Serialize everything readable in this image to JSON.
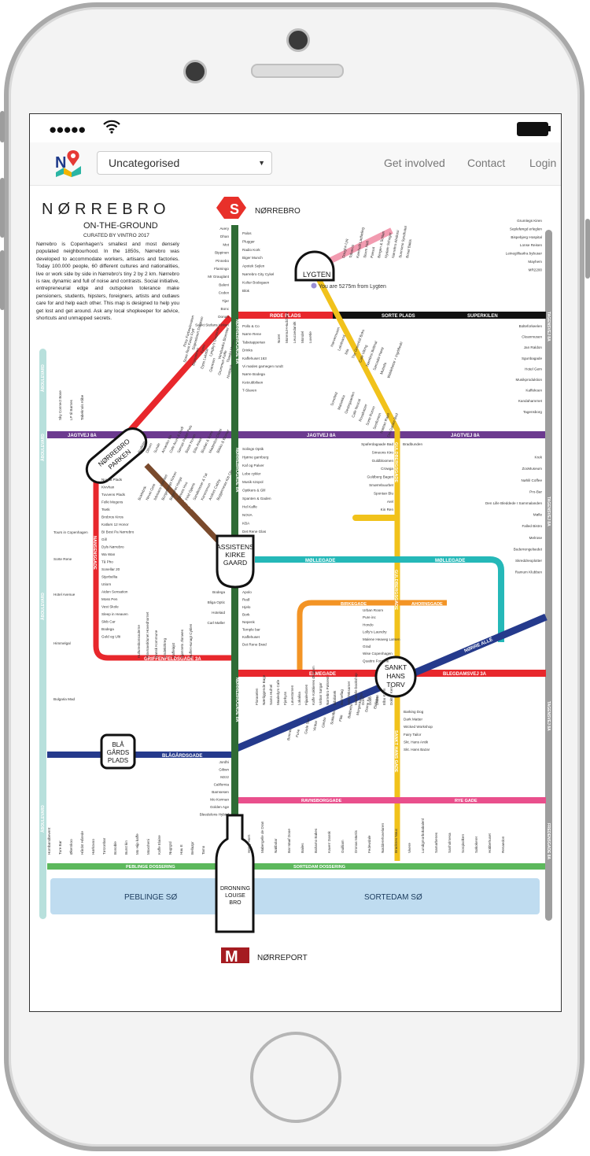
{
  "nav": {
    "category_select": "Uncategorised",
    "links": [
      "Get involved",
      "Contact",
      "Login"
    ]
  },
  "map": {
    "title": "NØRREBRO",
    "subtitle": "ON-THE-GROUND",
    "curated": "CURATED BY VINTRO 2017",
    "intro": "Nørrebro is Copenhagen's smallest and most densely populated neighbourhood. In the 1850s, Nørrebro was developed to accommodate workers, artisans and factories. Today 100.000 people, 60 different cultures and nationalities, live or work side by side in Nørrebro's tiny 2 by 2 km. Nørrebro is raw, dynamic and full of noise and contrasts. Social initiative, entrepreneurial edge and outspoken tolerance make pensioners, students, hipsters, foreigners, artists and outlaws care for and help each other. This map is designed to help you get lost and get around. Ask any local shopkeeper for advice, shortcuts and unmapped secrets.",
    "station_s_label": "NØRREBRO",
    "station_m_label": "NØRREPORT",
    "s_glyph": "S",
    "m_glyph": "M",
    "location_text": "You are 5275m from Lygten",
    "hubs": {
      "lygten": "LYGTEN",
      "parken": [
        "NØRREBRO",
        "PARKEN"
      ],
      "assistens": [
        "ASSISTENS",
        "KIRKE",
        "GAARD"
      ],
      "sankt_hans": [
        "SANKT",
        "HANS",
        "TORV"
      ],
      "blaagaards": [
        "BLÅ",
        "GÅRDS",
        "PLADS"
      ],
      "dronning": [
        "DRONNING",
        "LOUISE",
        "BRO"
      ]
    },
    "lines": {
      "roede_plads": "RØDE PLADS",
      "sorte_plads": "SORTE PLADS",
      "superkilen": "SUPERKILEN",
      "jagtvej_1": "JAGTVEJ 8A",
      "jagtvej_2": "JAGTVEJ 8A",
      "jagtvej_3": "JAGTVEJ 8A",
      "stengade": "STENGADE",
      "jesper": "JESPERSENSGADE",
      "nansensgade": "NANSENSGADE",
      "moellegade_1": "MØLLEGADE",
      "moellegade_2": "MØLLEGADE",
      "birkegade": "BIRKEGADE",
      "ahornsgade": "AHORNSGADE",
      "griffenfeld": "GRIFFENFELDSGADE 3A",
      "elmegade": "ELMEGADE",
      "blegdamsvej": "BLEGDAMSVEJ 3A",
      "noerre_alle": "NØRRE ALLÉ",
      "faelledvej": "FÆLLEDVEJ 3A",
      "blaagaardsgade": "BLÅGÅRDSGADE",
      "sankt_hans_gade": "SANKT HANS GADE",
      "ravnsborggade": "RAVNSBORGGADE",
      "rye_gade": "RYE GADE",
      "peblinge_dossering": "PEBLINGE DOSSERING",
      "sortedam_dossering": "SORTEDAM DOSSERING",
      "noerrebrogade_1": "NØRREBROGADE 8A",
      "noerrebrogade_2": "NØRREBROGADE 8A",
      "noerrebrogade_3": "NØRREBROGADE 8A",
      "guldbergsgade": "GULDBERGSGADE",
      "guldbergsgade_2": "GULDBERGSGADE",
      "baggesensgade": "BAGGESENSGADE",
      "tagensvej_1": "TAGENSVEJ 8A",
      "tagensvej_2": "TAGENSVEJ 8A",
      "tagensvej_3": "TAGENSVEJ 8A",
      "tagensvej_4": "FREDENSGADE 8A",
      "aaboulevard_1": "ÅBOULEVARD",
      "aaboulevard_2": "ÅBOULEVARD",
      "aaboulevard_3": "ÅBOULEVARD",
      "aaboulevard_4": "ÅBOULEVARD"
    },
    "lakes": {
      "peblinge": "PEBLINGE SØ",
      "sortedam": "SORTEDAM SØ"
    },
    "stops_main_left": [
      "Avery",
      "Dhan",
      "Mot",
      "Bippinen",
      "Pinnebo",
      "Flamingo",
      "Mr Grauglant",
      "Baleni",
      "Codex",
      "Tijer",
      "Bonc",
      "Dorum",
      "Sankt Stefans Kirken"
    ],
    "stops_main_right": [
      "Palos",
      "Plugger",
      "Radio Kork",
      "Biger Munch",
      "Apotek Sejlen",
      "Nørrebro City Cykel",
      "Kultur Bodegaen",
      "Blok"
    ],
    "stops_upper_mid": [
      "Pollo & Co",
      "Nørre Rene",
      "Tabetapperian",
      "Drinks",
      "Kaffehuset 163",
      "Vi mødes garnegen rundt",
      "Nørre Bodega",
      "Ketcubbilsen",
      "T-Slaven"
    ],
    "stops_lower_mid": [
      "Solings Optik",
      "Hjørne garnburg",
      "Kaf og Palver",
      "Lobe cykler",
      "Musik szopol",
      "Optikers & Glil",
      "Spanten & Gaden",
      "Hel Kaffe",
      "NOVA",
      "KBA",
      "Det Rene Glas"
    ],
    "stops_assistens": [
      "Bodega",
      "Bliga Optic",
      "Hotelaid",
      "Carl Møller"
    ],
    "stops_mid_right": [
      "Apolo",
      "Redl",
      "Hjelo",
      "Bork",
      "Nepenk",
      "Temple bar",
      "Kaffehuset",
      "Det Rene Brød"
    ],
    "stops_guld": [
      "Spaferdagaade Bad",
      "Simeons Kiro",
      "Guldbloomen",
      "Crowga",
      "Guldberg Bageri",
      "Smørrebuurbet",
      "Spontan Blu",
      "Arel",
      "Kin Ren"
    ],
    "stops_guld_lower": [
      "Urban Room",
      "Pure inc",
      "Hondo",
      "Lolly's Laundry",
      "Malene Heaveg Larsen",
      "Grad",
      "Wise Copenhagen",
      "Quattro Fontane"
    ],
    "stops_right": [
      "Grumlegs Kiren",
      "Sepleføngd erleglen",
      "Bispebjerg Hospital",
      "Lonse Reisen",
      "Leineglifsarlra bybuser",
      "Mayhem",
      "MR2200"
    ],
    "stops_right_lower": [
      "Bolteforkeelen",
      "Cleanmusen",
      "Jan Raldon",
      "Sgunbagade",
      "Hotel Gem",
      "Musikproduktion",
      "Kaffekoen",
      "Kandahamrnet",
      "Tagensborg"
    ],
    "stops_jagtvej_right": [
      "Bradbunden",
      "Krek",
      "ZooMuseum",
      "Nøhlil Coffee",
      "Pro-Bar",
      "Den Lille Bleddede I Sammalanden",
      "Mølle",
      "Falled Bistro",
      "Melrose",
      "Buderrengelsedet",
      "Skreddreoplotter",
      "Ramum Klubben"
    ],
    "stops_far_left": [
      "Nuuka Plads",
      "Kivvhan",
      "Tuvvens Plads",
      "Folki Mogens",
      "Tsetk",
      "Brobros Kiros",
      "Katlars 12 Honor",
      "BI Bost Pa Nørrebro",
      "Gill",
      "Dyls Nørrebro",
      "Wa Wan",
      "Tå Pho",
      "Sonellar 20",
      "Stjerbellia",
      "Utiorn",
      "Aiden Sensation",
      "Moss Pen",
      "Vest Skole",
      "Sleep in Heaven",
      "Skib Car",
      "Bodega",
      "Guld og Ulti"
    ],
    "stops_left_misc": [
      "Tours in Copenhagen",
      "Sorte Rene",
      "Hotel Avenue",
      "Himmelgal",
      "Bulgaria Mad"
    ],
    "stops_bottom": [
      "Hornbøndbevent",
      "Ture Bar",
      "Økemkoo",
      "Hårdst Hårede",
      "Hørkovoo",
      "Tørzonbar",
      "Bonoble",
      "Burst kin",
      "Mo Hijo kaffe",
      "Moxsheni",
      "Kaffe Elaine",
      "Nugrgrd",
      "Hau E",
      "Bellazpr",
      "Tamo"
    ],
    "stops_bottom_right": [
      "Henry Horn",
      "Mabergelle de Dran",
      "Nakbolar",
      "Bar Maaf Dooe",
      "Bailes",
      "Bahamo Bakes",
      "Kaverr Dansk",
      "Guilliam",
      "Dronas Marris",
      "Fedewdale",
      "Nødderehovelaren",
      "Bracknes Nouc",
      "Vivere",
      "Lundigmorbokabalenl",
      "Samarbenes",
      "Sanholmesa",
      "Sorqisolken",
      "Søkokerer",
      "Hobbehuset",
      "Renaedon"
    ],
    "stops_fael": [
      "Bonnet",
      "Fuse",
      "Gode Sun",
      "Vinbar",
      "Gimbo",
      "Sokkolbo",
      "Fikk",
      "Babbebo",
      "Morgenkutoss",
      "Dome Ko",
      "Elefanso"
    ],
    "stops_sankthans": [
      "Barking Dog",
      "Dark Matter",
      "Wicked Workshop",
      "Fairy Tailor",
      "Skt. Hans Antik",
      "Skt. Hans Bazar"
    ],
    "stops_dronning_left": [
      "Jordhi",
      "Giltwn",
      "Mzzz",
      "California",
      "Bamsesen",
      "Mo Korman",
      "Golden Age",
      "Bleedelons Hybird"
    ],
    "stops_left_vertical": [
      "Sky Connect Bose",
      "LP til Barnes",
      "Tabeknols Klibe"
    ],
    "stops_diag_upper": [
      "Pricy Farbeelevaren",
      "Slapneboert Duranen",
      "Fønix",
      "Lyngby's Diagnose",
      "Vandsanko Blomster",
      "Thanks Mosen",
      "Store Rest Fønix Flyff",
      "Bigmannen",
      "Dyss Lukebe",
      "Garnrem",
      "Grummen Kaffe",
      "Husbeck"
    ],
    "stops_diag_lower": [
      "Kultureskonsoulerne",
      "Flovnavsklunet Hovedhornet",
      "Dansk Kommune",
      "Lindekirkreg",
      "Kaffeløjst",
      "Kjønnets Jlonwes",
      "Buffet Hunagt Cyklen"
    ],
    "stops_jesper": [
      "Bodega",
      "Dlhom",
      "Sunde",
      "Amaniko Bo",
      "Cafe Aruni & Dudi",
      "Sømas Peder Pels",
      "Bazar Horen",
      "Ellis Anker",
      "Blodan & Sons",
      "Madenbol Chubi",
      "Blikko & Blomer",
      "Bokfebrik",
      "Nevel Gele",
      "Ildvisans Fabrikel",
      "Borgerbrugs Kirken",
      "Bagerriet Heiga",
      "Tønnes Hos",
      "Feld Gjæris",
      "Sandknisser & Tøi",
      "Karensmon",
      "Andres Cabby",
      "Byggemeste Kitt Oln"
    ],
    "stops_misc_vertical": [
      "Floraselen",
      "Nærliggende Bage",
      "Sams Hufnel",
      "Maaledyrs Cafe",
      "Fjorkyss",
      "Løvestomen",
      "Lokalisa",
      "Fijaalesfaren",
      "Kaffe Kokkieres Øvrgom",
      "Vinbar Sørgør",
      "Nørrebro Pølsrest",
      "Bibiliotek",
      "Børneflag",
      "Kelo Teksamer",
      "Malabelle bookshop",
      "Dorsi",
      "Dodo",
      "Dubo",
      "Elbo Krem",
      "Doktor Kerr"
    ],
    "stops_lygten": [
      "Doughn Lyq",
      "Tobacco",
      "Kamhelit Ladfæling",
      "Sturm Hoft",
      "Pansol",
      "Bergen & Schlan",
      "Nydam Schegor",
      "Nørrebro Abrikosi",
      "Sunnsmo Syndhotel",
      "Bosel Bakis"
    ],
    "stops_baggesen": [
      "Hørvemusen",
      "Lokalsand",
      "Ilda",
      "The Greenhill Boks",
      "Cafe Viking",
      "Nørebroi Bellinal",
      "Sørcadia Hawy",
      "Mutrefa",
      "Waldebetar + Ingrlifleski",
      "Sonefeld",
      "Malsekka",
      "Gestegaarden",
      "Cafe Noscal",
      "Rosakatzer",
      "Sorte Rotom",
      "Sestfonten",
      "Natrtan Rajet",
      "Det Galske Bod"
    ],
    "stops_sorte": [
      "Noret",
      "Morenut+Hudchard",
      "Leucoedanirk",
      "Mondel",
      "Luvetie"
    ]
  }
}
